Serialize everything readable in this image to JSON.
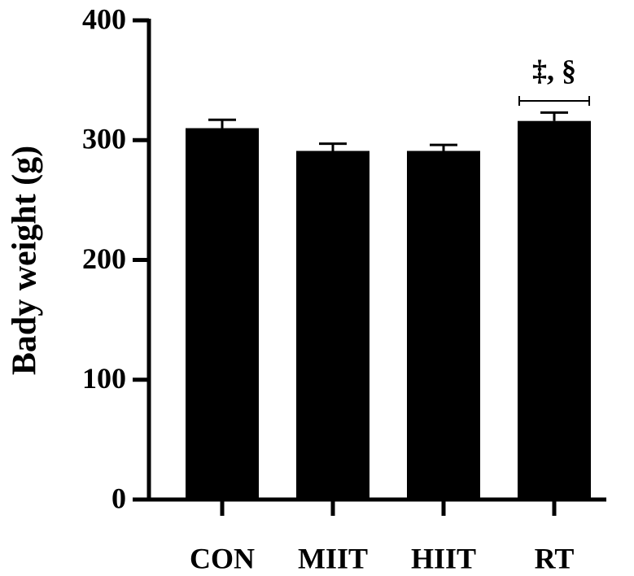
{
  "chart_data": {
    "type": "bar",
    "y_label": "Bady weight (g)",
    "categories": [
      "CON",
      "MIIT",
      "HIIT",
      "RT"
    ],
    "values": [
      310,
      291,
      291,
      316
    ],
    "errors": [
      7,
      6,
      5,
      7
    ],
    "color": "#000000",
    "ylim": [
      0,
      400
    ],
    "yticks": [
      0,
      100,
      200,
      300,
      400
    ],
    "annotation": "‡, §"
  }
}
